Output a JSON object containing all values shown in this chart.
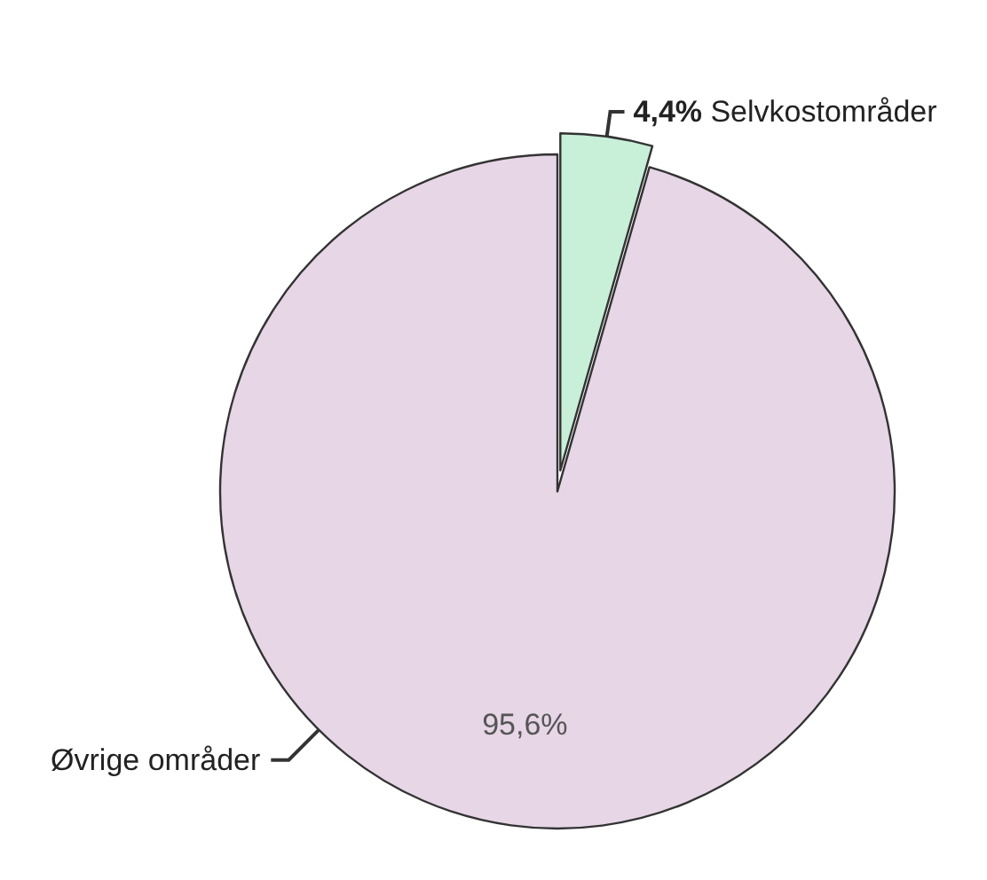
{
  "chart_data": {
    "type": "pie",
    "categories": [
      "Selvkostområder",
      "Øvrige områder"
    ],
    "values": [
      4.4,
      95.6
    ],
    "colors": [
      "#c8f0d8",
      "#e6d6e6"
    ],
    "value_labels": [
      "4,4%",
      "95,6%"
    ]
  }
}
